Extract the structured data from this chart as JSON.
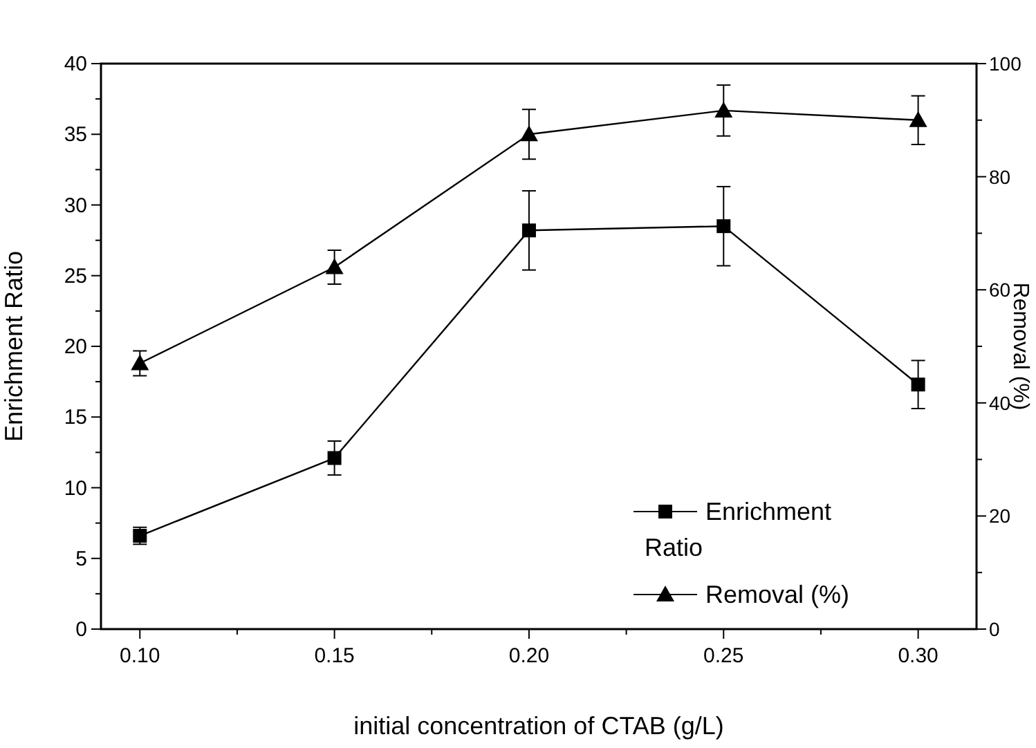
{
  "chart_data": {
    "type": "line",
    "xlabel": "initial concentration of CTAB (g/L)",
    "ylabel": "Enrichment Ratio",
    "y2label": "Removal (%)",
    "x": [
      0.1,
      0.15,
      0.2,
      0.25,
      0.3
    ],
    "xlim": [
      0.09,
      0.315
    ],
    "xticks": [
      {
        "value": 0.1,
        "label": "0.10"
      },
      {
        "value": 0.125,
        "label": null
      },
      {
        "value": 0.15,
        "label": "0.15"
      },
      {
        "value": 0.175,
        "label": null
      },
      {
        "value": 0.2,
        "label": "0.20"
      },
      {
        "value": 0.225,
        "label": null
      },
      {
        "value": 0.25,
        "label": "0.25"
      },
      {
        "value": 0.275,
        "label": null
      },
      {
        "value": 0.3,
        "label": "0.30"
      }
    ],
    "ylim": [
      0,
      40
    ],
    "yticks": [
      0,
      {
        "value": 2.5,
        "label": null
      },
      5,
      {
        "value": 7.5,
        "label": null
      },
      10,
      {
        "value": 12.5,
        "label": null
      },
      15,
      {
        "value": 17.5,
        "label": null
      },
      20,
      {
        "value": 22.5,
        "label": null
      },
      25,
      {
        "value": 27.5,
        "label": null
      },
      30,
      {
        "value": 32.5,
        "label": null
      },
      35,
      {
        "value": 37.5,
        "label": null
      },
      40
    ],
    "y2lim": [
      0,
      100
    ],
    "y2ticks": [
      0,
      {
        "value": 10,
        "label": null
      },
      20,
      {
        "value": 30,
        "label": null
      },
      40,
      {
        "value": 50,
        "label": null
      },
      60,
      {
        "value": 70,
        "label": null
      },
      80,
      {
        "value": 90,
        "label": null
      },
      100
    ],
    "legend": "bottom right",
    "grid": false,
    "line_style": "solid",
    "series": [
      {
        "name": "Enrichment Ratio",
        "color": "#000000",
        "marker": "square",
        "values": [
          6.6,
          12.1,
          28.2,
          28.5,
          17.3
        ],
        "errors": [
          0.6,
          1.2,
          2.8,
          2.8,
          1.7
        ]
      },
      {
        "name": "Removal (%)",
        "color": "#000000",
        "marker": "triangle",
        "axis": "y2",
        "values": [
          47,
          64,
          87.5,
          91.7,
          90
        ],
        "errors": [
          2.2,
          3,
          4.4,
          4.5,
          4.3
        ]
      }
    ]
  }
}
